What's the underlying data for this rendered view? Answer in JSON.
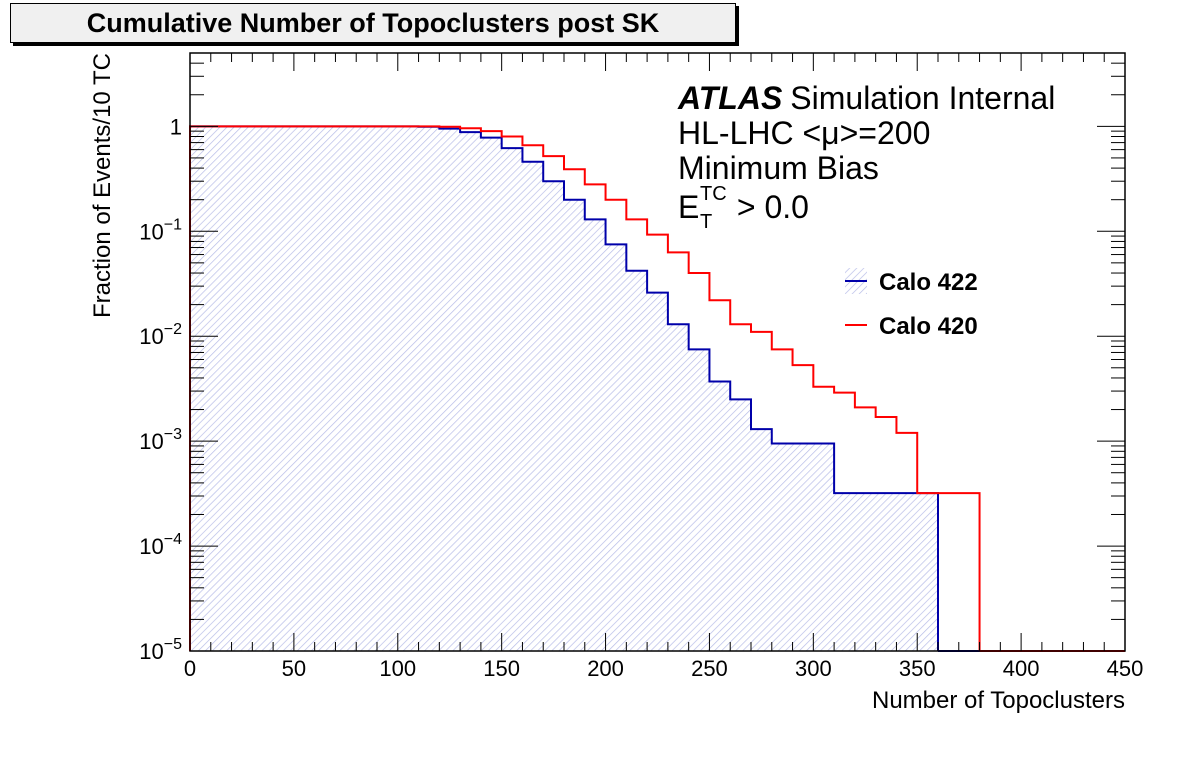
{
  "chart_data": {
    "type": "line",
    "subtype": "cumulative step histogram",
    "title": "Cumulative Number of Topoclusters post SK",
    "xlabel": "Number of Topoclusters",
    "ylabel": "Fraction of Events/10 TC",
    "xlim": [
      0,
      450
    ],
    "ylim": [
      1e-05,
      5
    ],
    "yscale": "log",
    "x_ticks": [
      0,
      50,
      100,
      150,
      200,
      250,
      300,
      350,
      400,
      450
    ],
    "y_ticks": [
      {
        "value": 1,
        "label": "1",
        "sup": ""
      },
      {
        "value": 0.1,
        "label": "10",
        "sup": "−1"
      },
      {
        "value": 0.01,
        "label": "10",
        "sup": "−2"
      },
      {
        "value": 0.001,
        "label": "10",
        "sup": "−3"
      },
      {
        "value": 0.0001,
        "label": "10",
        "sup": "−4"
      },
      {
        "value": 1e-05,
        "label": "10",
        "sup": "−5"
      }
    ],
    "bin_width": 10,
    "annotations": {
      "atlas": "ATLAS",
      "atlas_suffix": "Simulation Internal",
      "line2": "HL-LHC <μ>=200",
      "line3": "Minimum Bias",
      "line4_main": "E",
      "line4_sup": "TC",
      "line4_sub": "T",
      "line4_rest": " > 0.0"
    },
    "legend_position": "top-right",
    "grid": false,
    "series": [
      {
        "name": "Calo 422",
        "color": "#0000aa",
        "fill": "hatched light blue",
        "bin_edges_start": 0,
        "values": [
          1,
          1,
          1,
          1,
          1,
          1,
          1,
          1,
          1,
          1,
          1,
          0.99,
          0.95,
          0.88,
          0.78,
          0.62,
          0.46,
          0.3,
          0.2,
          0.13,
          0.075,
          0.042,
          0.026,
          0.013,
          0.0075,
          0.0037,
          0.0025,
          0.0013,
          0.00095,
          0.00095,
          0.00095,
          0.00032,
          0.00032,
          0.00032,
          0.00032,
          0.00032
        ]
      },
      {
        "name": "Calo 420",
        "color": "#ff0000",
        "fill": "none",
        "bin_edges_start": 0,
        "values": [
          1,
          1,
          1,
          1,
          1,
          1,
          1,
          1,
          1,
          1,
          1,
          1,
          0.99,
          0.96,
          0.9,
          0.8,
          0.66,
          0.52,
          0.39,
          0.28,
          0.2,
          0.13,
          0.093,
          0.063,
          0.04,
          0.022,
          0.013,
          0.011,
          0.0075,
          0.0053,
          0.0033,
          0.0029,
          0.0021,
          0.0017,
          0.0012,
          0.00032,
          0.00032,
          0.00032
        ]
      }
    ]
  }
}
